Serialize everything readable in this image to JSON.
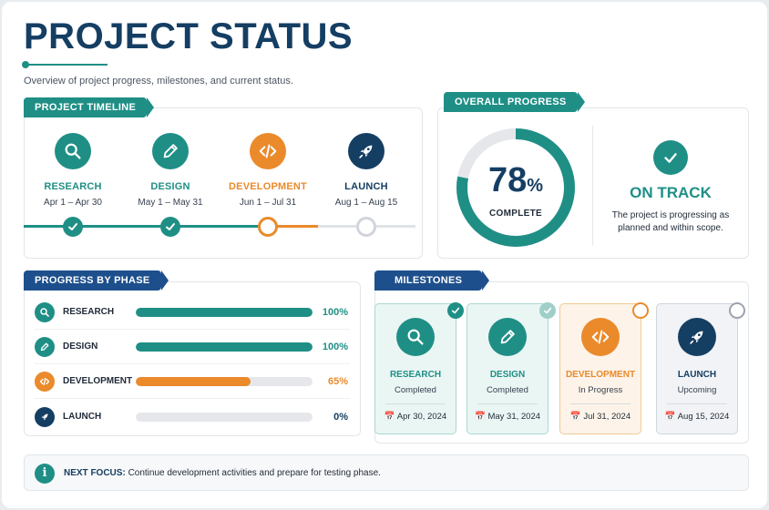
{
  "header": {
    "title": "PROJECT STATUS",
    "subtitle": "Overview of project progress, milestones, and current status."
  },
  "colors": {
    "teal": "#1f8f86",
    "navy": "#153e63",
    "orange": "#ea8a2b",
    "grey": "#d1d5db"
  },
  "timeline": {
    "label": "PROJECT TIMELINE",
    "steps": [
      {
        "name": "RESEARCH",
        "dates": "Apr 1 – Apr 30",
        "icon": "search-icon",
        "state": "done"
      },
      {
        "name": "DESIGN",
        "dates": "May 1 – May 31",
        "icon": "pencil-icon",
        "state": "done"
      },
      {
        "name": "DEVELOPMENT",
        "dates": "Jun 1 – Jul 31",
        "icon": "code-icon",
        "state": "current"
      },
      {
        "name": "LAUNCH",
        "dates": "Aug 1 – Aug 15",
        "icon": "rocket-icon",
        "state": "future"
      }
    ]
  },
  "overall": {
    "label": "OVERALL PROGRESS",
    "percent": 78,
    "percent_text": "78",
    "percent_sign": "%",
    "complete_label": "COMPLETE",
    "status_title": "ON TRACK",
    "status_desc": "The project is progressing as planned and within scope."
  },
  "phases": {
    "label": "PROGRESS BY PHASE",
    "items": [
      {
        "name": "RESEARCH",
        "percent": 100,
        "value_text": "100%",
        "icon": "search-icon",
        "color": "#1f8f86"
      },
      {
        "name": "DESIGN",
        "percent": 100,
        "value_text": "100%",
        "icon": "pencil-icon",
        "color": "#1f8f86"
      },
      {
        "name": "DEVELOPMENT",
        "percent": 65,
        "value_text": "65%",
        "icon": "code-icon",
        "color": "#ea8a2b"
      },
      {
        "name": "LAUNCH",
        "percent": 0,
        "value_text": "0%",
        "icon": "rocket-icon",
        "color": "#153e63"
      }
    ]
  },
  "milestones": {
    "label": "MILESTONES",
    "items": [
      {
        "name": "RESEARCH",
        "state": "Completed",
        "date": "Apr 30, 2024",
        "icon": "search-icon"
      },
      {
        "name": "DESIGN",
        "state": "Completed",
        "date": "May 31, 2024",
        "icon": "pencil-icon"
      },
      {
        "name": "DEVELOPMENT",
        "state": "In Progress",
        "date": "Jul 31, 2024",
        "icon": "code-icon"
      },
      {
        "name": "LAUNCH",
        "state": "Upcoming",
        "date": "Aug 15, 2024",
        "icon": "rocket-icon"
      }
    ]
  },
  "next_focus": {
    "label": "NEXT FOCUS:",
    "text": "Continue development activities and prepare for testing phase."
  }
}
